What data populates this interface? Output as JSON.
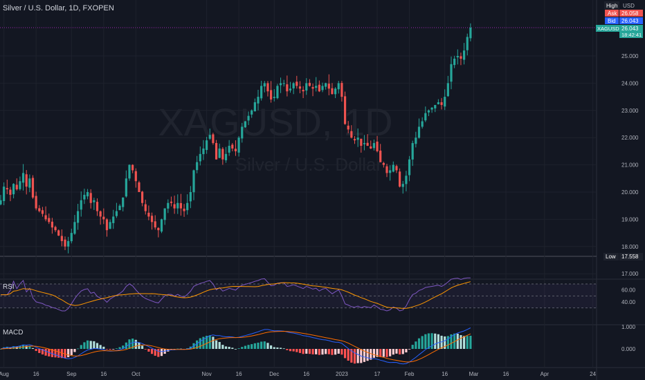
{
  "header": {
    "symbol_desc": "Silver / U.S. Dollar, 1D, FXOPEN",
    "currency": "USD"
  },
  "watermark": {
    "line1": "XAGUSD, 1D",
    "line2": "Silver / U.S. Dollar"
  },
  "badges": {
    "high_label": "High",
    "ask_label": "Ask",
    "ask_value": "26.058",
    "bid_label": "Bid",
    "bid_value": "26.043",
    "symbol": "XAGUSD",
    "last_value": "26.043",
    "countdown": "18:42:41",
    "low_label": "Low",
    "low_value": "17.558"
  },
  "panes": {
    "rsi_label": "RSI",
    "macd_label": "MACD"
  },
  "colors": {
    "up": "#26a69a",
    "down": "#ef5350",
    "bg": "#131722",
    "rsi_line": "#7e57c2",
    "rsi_ma": "#ff9800",
    "macd_line": "#2962ff",
    "signal_line": "#ff6d00"
  },
  "chart_data": [
    {
      "type": "candlestick",
      "series": [
        {
          "name": "XAGUSD"
        }
      ],
      "y_ticks": [
        "25.000",
        "24.000",
        "23.000",
        "22.000",
        "21.000",
        "20.000",
        "19.000",
        "18.000",
        "17.000"
      ],
      "ylim": [
        16.75,
        26.75
      ],
      "high": 26.1,
      "low": 17.558,
      "x_ticks": [
        {
          "label": "Aug",
          "idx": 1
        },
        {
          "label": "16",
          "idx": 11
        },
        {
          "label": "Sep",
          "idx": 22
        },
        {
          "label": "16",
          "idx": 32
        },
        {
          "label": "Oct",
          "idx": 42
        },
        {
          "label": "Nov",
          "idx": 64
        },
        {
          "label": "16",
          "idx": 74
        },
        {
          "label": "Dec",
          "idx": 85
        },
        {
          "label": "16",
          "idx": 95
        },
        {
          "label": "2023",
          "idx": 106
        },
        {
          "label": "17",
          "idx": 117
        },
        {
          "label": "Feb",
          "idx": 127
        },
        {
          "label": "16",
          "idx": 138
        },
        {
          "label": "Mar",
          "idx": 147
        },
        {
          "label": "16",
          "idx": 157
        },
        {
          "label": "Apr",
          "idx": 169
        },
        {
          "label": "24",
          "idx": 184
        }
      ],
      "candles": []
    },
    {
      "type": "line",
      "name": "RSI",
      "y_ticks": [
        "60.00",
        "40.00"
      ],
      "ylim": [
        25,
        80
      ],
      "bands": [
        70,
        30
      ],
      "mid": 50
    },
    {
      "type": "bar",
      "name": "MACD",
      "y_ticks": [
        "1.000",
        "0.000"
      ],
      "ylim": [
        -1.4,
        1.25
      ]
    }
  ],
  "close_path": [
    19.7,
    20.2,
    20.1,
    19.9,
    20.3,
    20.1,
    20.4,
    20.7,
    20.2,
    20.5,
    19.8,
    19.4,
    19.3,
    19.2,
    19.0,
    18.9,
    18.7,
    18.6,
    18.4,
    18.2,
    18.0,
    18.2,
    18.5,
    18.9,
    19.3,
    19.7,
    19.9,
    20.0,
    19.6,
    19.7,
    19.3,
    19.1,
    19.0,
    18.6,
    18.9,
    19.1,
    19.3,
    19.5,
    19.8,
    20.5,
    21.0,
    20.8,
    20.4,
    20.0,
    19.6,
    19.3,
    19.1,
    18.9,
    18.7,
    18.6,
    19.0,
    19.4,
    19.6,
    19.6,
    19.4,
    19.6,
    19.4,
    19.3,
    19.6,
    20.0,
    20.8,
    21.1,
    21.4,
    21.6,
    21.9,
    22.1,
    21.8,
    21.2,
    21.6,
    21.2,
    21.4,
    21.7,
    21.6,
    21.5,
    22.0,
    22.4,
    22.6,
    22.8,
    23.0,
    23.3,
    23.5,
    23.9,
    24.0,
    23.7,
    23.4,
    23.5,
    23.9,
    24.0,
    24.0,
    23.7,
    23.8,
    24.0,
    23.9,
    23.8,
    23.7,
    24.0,
    23.9,
    23.8,
    23.9,
    23.7,
    23.9,
    24.0,
    23.8,
    23.6,
    23.8,
    24.0,
    23.5,
    22.5,
    22.3,
    22.0,
    21.9,
    22.0,
    21.7,
    21.8,
    21.7,
    21.6,
    21.8,
    21.5,
    21.1,
    21.0,
    20.7,
    20.8,
    21.0,
    20.8,
    20.2,
    20.3,
    20.6,
    21.2,
    21.8,
    22.0,
    22.4,
    22.6,
    22.9,
    23.0,
    23.1,
    23.2,
    23.3,
    23.2,
    23.5,
    24.0,
    24.7,
    24.9,
    25.0,
    24.9,
    25.2,
    25.7,
    26.04
  ]
}
